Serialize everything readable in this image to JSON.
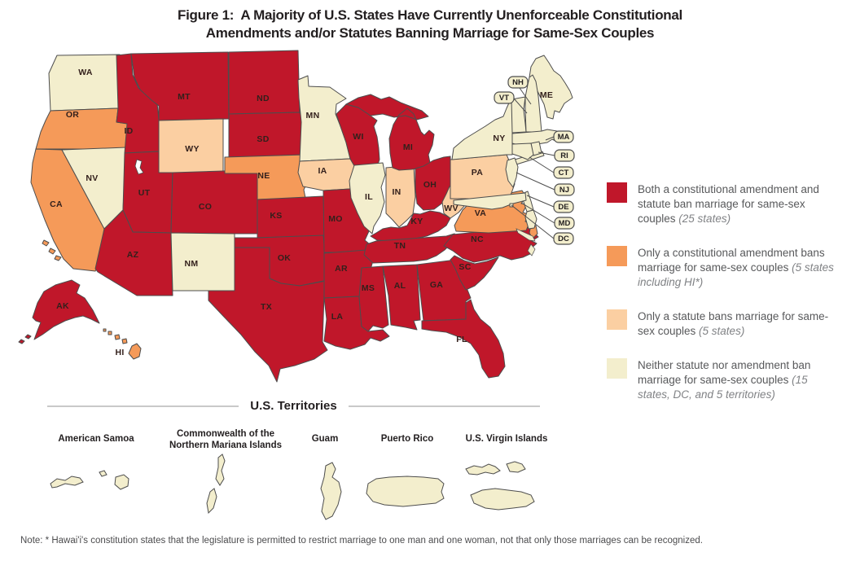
{
  "title": {
    "prefix": "Figure 1:",
    "line1": "A Majority of U.S. States Have Currently Unenforceable Constitutional",
    "line2": "Amendments and/or Statutes Banning Marriage for Same-Sex Couples"
  },
  "colors": {
    "both": "#c0172a",
    "amendment": "#f59a59",
    "statute": "#fbcfa2",
    "neither": "#f3eecd",
    "outline": "#4d4d4d"
  },
  "legend": {
    "items": [
      {
        "status": "both",
        "text": "Both a constitutional amendment and statute ban marriage for same-sex couples ",
        "note": "(25 states)"
      },
      {
        "status": "amendment",
        "text": "Only a constitutional amendment bans marriage for same-sex couples ",
        "note": "(5 states including HI*)"
      },
      {
        "status": "statute",
        "text": "Only a statute bans marriage for same-sex couples ",
        "note": "(5 states)"
      },
      {
        "status": "neither",
        "text": "Neither statute nor amendment ban marriage for same-sex couples ",
        "note": "(15 states, DC, and 5 territories)"
      }
    ]
  },
  "states": {
    "WA": "neither",
    "OR": "amendment",
    "CA": "amendment",
    "NV": "neither",
    "ID": "both",
    "MT": "both",
    "WY": "statute",
    "UT": "both",
    "CO": "both",
    "AZ": "both",
    "NM": "neither",
    "ND": "both",
    "SD": "both",
    "NE": "amendment",
    "KS": "both",
    "OK": "both",
    "TX": "both",
    "MN": "neither",
    "IA": "statute",
    "MO": "both",
    "AR": "both",
    "LA": "both",
    "WI": "both",
    "IL": "neither",
    "IN": "statute",
    "MI": "both",
    "OH": "both",
    "KY": "both",
    "TN": "both",
    "MS": "both",
    "AL": "both",
    "GA": "both",
    "FL": "both",
    "SC": "both",
    "NC": "both",
    "VA": "amendment",
    "WV": "statute",
    "PA": "statute",
    "NY": "neither",
    "ME": "neither",
    "VT": "neither",
    "NH": "neither",
    "MA": "neither",
    "RI": "neither",
    "CT": "neither",
    "NJ": "neither",
    "DE": "neither",
    "MD": "neither",
    "DC": "neither",
    "AK": "both",
    "HI": "amendment"
  },
  "boxed_labels": [
    "NH",
    "VT",
    "MA",
    "RI",
    "CT",
    "NJ",
    "DE",
    "MD",
    "DC"
  ],
  "territories": {
    "title": "U.S. Territories",
    "names": [
      "American Samoa",
      "Commonwealth of the Northern Mariana Islands",
      "Guam",
      "Puerto Rico",
      "U.S. Virgin Islands"
    ]
  },
  "note": "Note: * Hawai'i's constitution states that the legislature is permitted to restrict marriage to one man and one woman, not that only those marriages can be recognized."
}
